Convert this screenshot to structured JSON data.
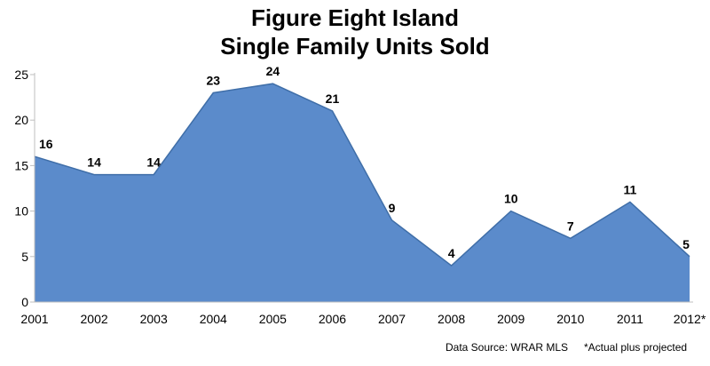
{
  "chart_data": {
    "type": "area",
    "title": "Figure Eight Island",
    "subtitle": "Single Family Units Sold",
    "categories": [
      "2001",
      "2002",
      "2003",
      "2004",
      "2005",
      "2006",
      "2007",
      "2008",
      "2009",
      "2010",
      "2011",
      "2012*"
    ],
    "series": [
      {
        "values": [
          16,
          14,
          14,
          23,
          24,
          21,
          9,
          4,
          10,
          7,
          11,
          5
        ]
      }
    ],
    "ylim": [
      0,
      25
    ],
    "yticks": [
      0,
      5,
      10,
      15,
      20,
      25
    ],
    "grid": false,
    "legend": "none",
    "data_labels": true,
    "colors": {
      "area": "#5b8bcb",
      "edge": "#3f6ea8",
      "axis": "#bfbfbf"
    }
  },
  "footnotes": {
    "source": "Data Source: WRAR MLS",
    "note": "*Actual plus projected"
  }
}
